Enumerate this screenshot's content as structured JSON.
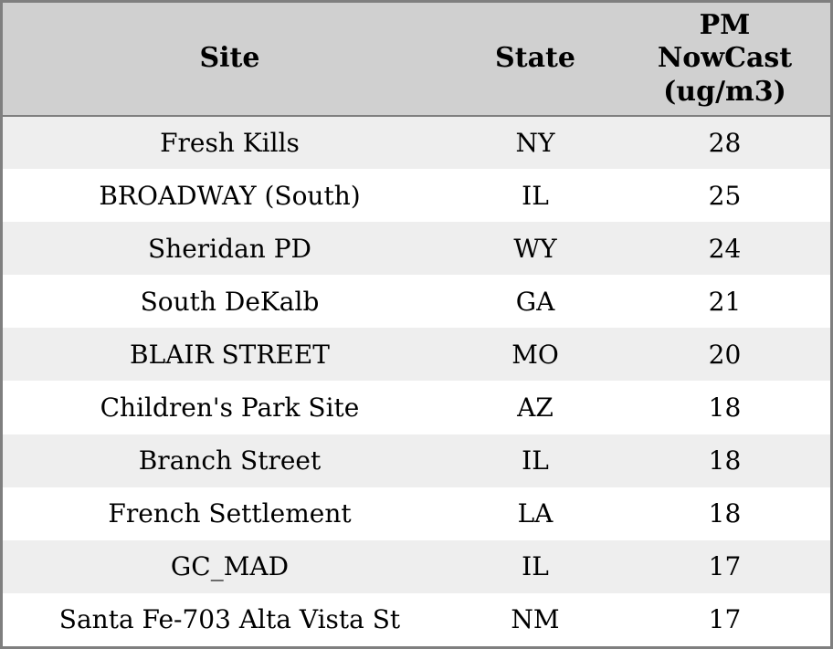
{
  "colors": {
    "border": "#7f7f7f",
    "header_bg": "#d0d0d0",
    "alt_row_bg": "#eeeeee",
    "row_bg": "#ffffff",
    "text": "#000000"
  },
  "chart_data": {
    "type": "table",
    "title": "",
    "columns": [
      "Site",
      "State",
      "PM NowCast (ug/m3)"
    ],
    "rows": [
      {
        "site": "Fresh Kills",
        "state": "NY",
        "value": "28"
      },
      {
        "site": "BROADWAY (South)",
        "state": "IL",
        "value": "25"
      },
      {
        "site": "Sheridan PD",
        "state": "WY",
        "value": "24"
      },
      {
        "site": "South DeKalb",
        "state": "GA",
        "value": "21"
      },
      {
        "site": "BLAIR STREET",
        "state": "MO",
        "value": "20"
      },
      {
        "site": "Children's Park Site",
        "state": "AZ",
        "value": "18"
      },
      {
        "site": "Branch Street",
        "state": "IL",
        "value": "18"
      },
      {
        "site": "French Settlement",
        "state": "LA",
        "value": "18"
      },
      {
        "site": "GC_MAD",
        "state": "IL",
        "value": "17"
      },
      {
        "site": "Santa Fe-703 Alta Vista St",
        "state": "NM",
        "value": "17"
      }
    ]
  }
}
